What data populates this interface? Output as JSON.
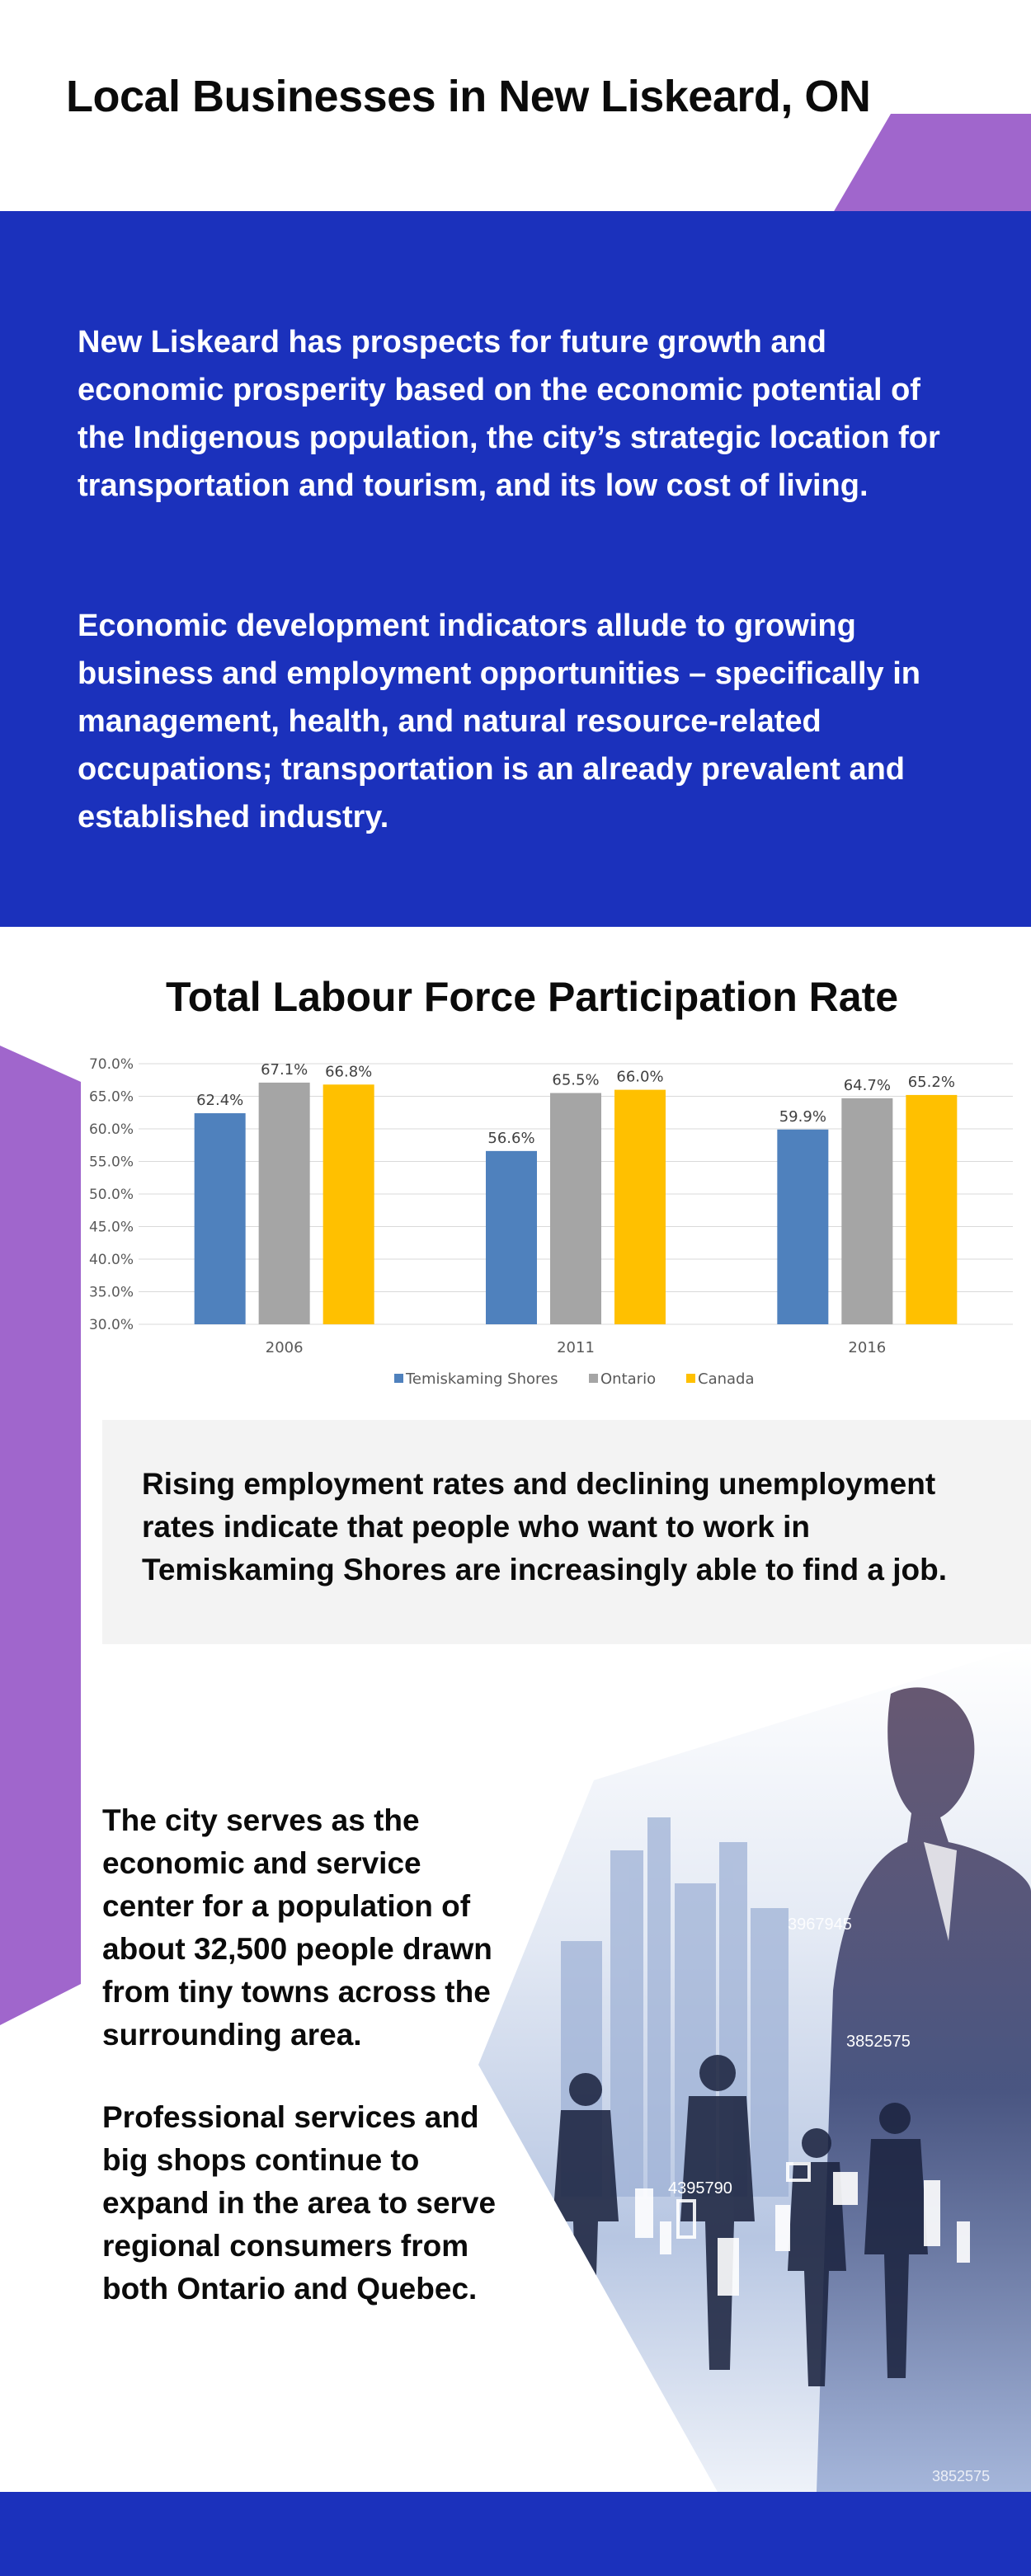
{
  "header": {
    "title": "Local Businesses in New Liskeard, ON"
  },
  "intro": {
    "paragraph1": "New Liskeard has prospects for future growth and economic prosperity based on the economic potential of the Indigenous population, the city’s strategic location for transportation and tourism, and its low cost of living.",
    "paragraph2": "Economic development indicators allude to growing business and employment opportunities – specifically in management, health, and natural resource-related occupations; transportation is an already prevalent and established industry."
  },
  "chart": {
    "title": "Total Labour Force Participation Rate"
  },
  "chart_data": {
    "type": "bar",
    "title": "Total Labour Force Participation Rate",
    "categories": [
      "2006",
      "2011",
      "2016"
    ],
    "series": [
      {
        "name": "Temiskaming Shores",
        "values": [
          62.4,
          56.6,
          59.9
        ],
        "labels": [
          "62.4%",
          "56.6%",
          "59.9%"
        ],
        "color": "#4f81bd"
      },
      {
        "name": "Ontario",
        "values": [
          67.1,
          65.5,
          64.7
        ],
        "labels": [
          "67.1%",
          "65.5%",
          "64.7%"
        ],
        "color": "#a5a5a5"
      },
      {
        "name": "Canada",
        "values": [
          66.8,
          66.0,
          65.2
        ],
        "labels": [
          "66.8%",
          "66.0%",
          "65.2%"
        ],
        "color": "#ffc000"
      }
    ],
    "yticks": [
      "30.0%",
      "35.0%",
      "40.0%",
      "45.0%",
      "50.0%",
      "55.0%",
      "60.0%",
      "65.0%",
      "70.0%"
    ],
    "ylim": [
      30,
      70
    ],
    "grid": true,
    "legend": "bottom"
  },
  "callout": {
    "text": "Rising employment rates and declining unemployment rates indicate that people who want to work in Temiskaming Shores are increasingly able to find a job."
  },
  "bottom": {
    "paragraph1": "The city serves as the economic and service center for a population of about 32,500 people drawn from tiny towns across the surrounding area.",
    "paragraph2": "Professional services and big shops continue to expand in the area to serve regional consumers from both Ontario and Quebec."
  },
  "illustration": {
    "numbers": [
      "3967945",
      "3852575",
      "4395790",
      "3852575"
    ]
  },
  "colors": {
    "blue": "#1b31bc",
    "purple": "#a066cc",
    "callout_bg": "#f3f3f3"
  }
}
